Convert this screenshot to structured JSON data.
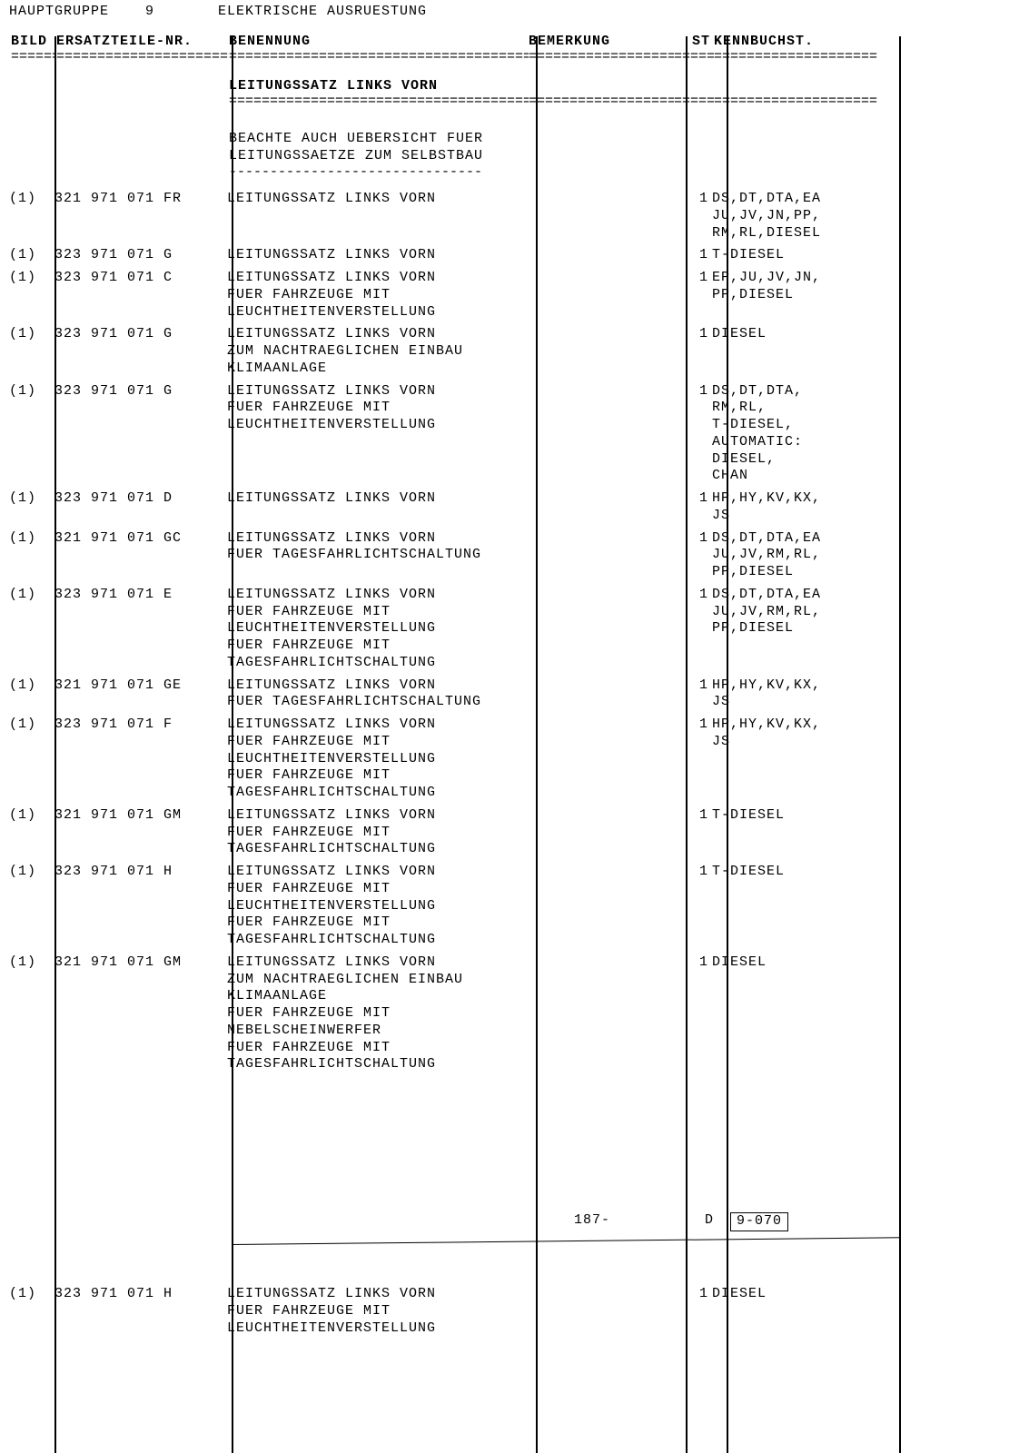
{
  "header": {
    "hauptgruppe_label": "HAUPTGRUPPE",
    "hauptgruppe_num": "9",
    "section_title": "ELEKTRISCHE AUSRUESTUNG"
  },
  "columns": {
    "bild": "BILD",
    "ersatzteile": "ERSATZTEILE-NR.",
    "benennung": "BENENNUNG",
    "bemerkung": "BEMERKUNG",
    "st": "ST",
    "kennbuchst": "KENNBUCHST."
  },
  "divider": "================================================================",
  "section": {
    "title": "LEITUNGSSATZ LINKS VORN",
    "note": "BEACHTE AUCH UEBERSICHT FUER\nLEITUNGSSAETZE ZUM SELBSTBAU",
    "dashes": "-------------------------------"
  },
  "rows": [
    {
      "bild": "(1)",
      "nr": "321 971 071 FR",
      "desc": "LEITUNGSSATZ LINKS VORN",
      "bemerk": "",
      "st": "1",
      "kenn": "DS,DT,DTA,EA\nJU,JV,JN,PP,\nRM,RL,DIESEL"
    },
    {
      "bild": "(1)",
      "nr": "323 971 071 G",
      "desc": "LEITUNGSSATZ LINKS VORN",
      "bemerk": "",
      "st": "1",
      "kenn": "T-DIESEL"
    },
    {
      "bild": "(1)",
      "nr": "323 971 071 C",
      "desc": "LEITUNGSSATZ LINKS VORN\nFUER FAHRZEUGE MIT\nLEUCHTHEITENVERSTELLUNG",
      "bemerk": "",
      "st": "1",
      "kenn": "EP,JU,JV,JN,\nPP,DIESEL"
    },
    {
      "bild": "(1)",
      "nr": "323 971 071 G",
      "desc": "LEITUNGSSATZ LINKS VORN\nZUM NACHTRAEGLICHEN EINBAU\nKLIMAANLAGE",
      "bemerk": "",
      "st": "1",
      "kenn": "DIESEL"
    },
    {
      "bild": "(1)",
      "nr": "323 971 071 G",
      "desc": "LEITUNGSSATZ LINKS VORN\nFUER FAHRZEUGE MIT\nLEUCHTHEITENVERSTELLUNG",
      "bemerk": "",
      "st": "1",
      "kenn": "DS,DT,DTA,\nRM,RL,\nT-DIESEL,\nAUTOMATIC:\nDIESEL,\nCHAN"
    },
    {
      "bild": "(1)",
      "nr": "323 971 071 D",
      "desc": "LEITUNGSSATZ LINKS VORN",
      "bemerk": "",
      "st": "1",
      "kenn": "HP,HY,KV,KX,\nJS"
    },
    {
      "bild": "(1)",
      "nr": "321 971 071 GC",
      "desc": "LEITUNGSSATZ LINKS VORN\nFUER TAGESFAHRLICHTSCHALTUNG",
      "bemerk": "",
      "st": "1",
      "kenn": "DS,DT,DTA,EA\nJU,JV,RM,RL,\nPP,DIESEL"
    },
    {
      "bild": "(1)",
      "nr": "323 971 071 E",
      "desc": "LEITUNGSSATZ LINKS VORN\nFUER FAHRZEUGE MIT\nLEUCHTHEITENVERSTELLUNG\nFUER FAHRZEUGE MIT\nTAGESFAHRLICHTSCHALTUNG",
      "bemerk": "",
      "st": "1",
      "kenn": "DS,DT,DTA,EA\nJU,JV,RM,RL,\nPP,DIESEL"
    },
    {
      "bild": "(1)",
      "nr": "321 971 071 GE",
      "desc": "LEITUNGSSATZ LINKS VORN\nFUER TAGESFAHRLICHTSCHALTUNG",
      "bemerk": "",
      "st": "1",
      "kenn": "HP,HY,KV,KX,\nJS"
    },
    {
      "bild": "(1)",
      "nr": "323 971 071 F",
      "desc": "LEITUNGSSATZ LINKS VORN\nFUER FAHRZEUGE MIT\nLEUCHTHEITENVERSTELLUNG\nFUER FAHRZEUGE MIT\nTAGESFAHRLICHTSCHALTUNG",
      "bemerk": "",
      "st": "1",
      "kenn": "HP,HY,KV,KX,\nJS"
    },
    {
      "bild": "(1)",
      "nr": "321 971 071 GM",
      "desc": "LEITUNGSSATZ LINKS VORN\nFUER FAHRZEUGE MIT\nTAGESFAHRLICHTSCHALTUNG",
      "bemerk": "",
      "st": "1",
      "kenn": "T-DIESEL"
    },
    {
      "bild": "(1)",
      "nr": "323 971 071 H",
      "desc": "LEITUNGSSATZ LINKS VORN\nFUER FAHRZEUGE MIT\nLEUCHTHEITENVERSTELLUNG\nFUER FAHRZEUGE MIT\nTAGESFAHRLICHTSCHALTUNG",
      "bemerk": "",
      "st": "1",
      "kenn": "T-DIESEL"
    },
    {
      "bild": "(1)",
      "nr": "321 971 071 GM",
      "desc": "LEITUNGSSATZ LINKS VORN\nZUM NACHTRAEGLICHEN EINBAU\nKLIMAANLAGE\nFUER FAHRZEUGE MIT\nNEBELSCHEINWERFER\nFUER FAHRZEUGE MIT\nTAGESFAHRLICHTSCHALTUNG",
      "bemerk": "",
      "st": "1",
      "kenn": "DIESEL"
    }
  ],
  "footer": {
    "page": "187-",
    "code_prefix": "D",
    "code_box": "9-070"
  },
  "rows2": [
    {
      "bild": "(1)",
      "nr": "323 971 071 H",
      "desc": "LEITUNGSSATZ LINKS VORN\nFUER FAHRZEUGE MIT\nLEUCHTHEITENVERSTELLUNG",
      "bemerk": "",
      "st": "1",
      "kenn": "DIESEL"
    }
  ]
}
